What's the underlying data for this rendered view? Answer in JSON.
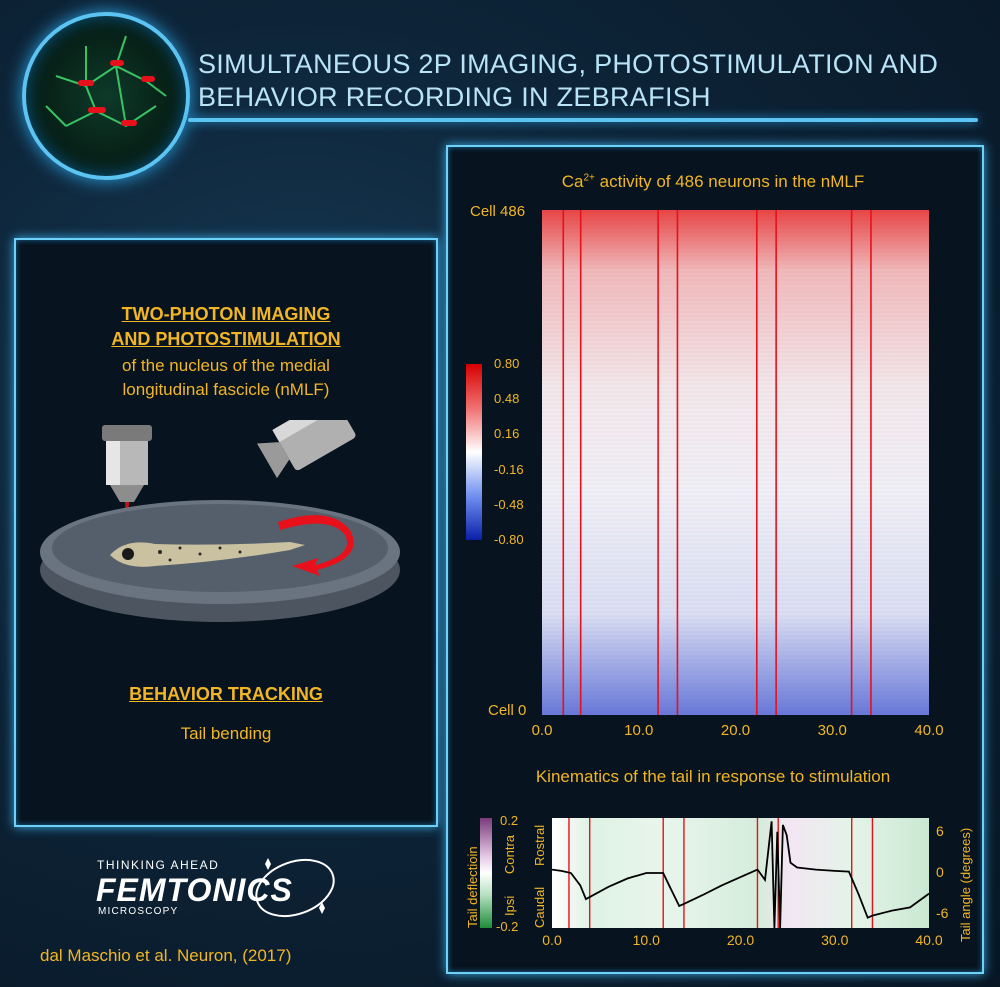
{
  "header": {
    "title": "SIMULTANEOUS 2P IMAGING, PHOTOSTIMULATION AND BEHAVIOR RECORDING IN ZEBRAFISH"
  },
  "left": {
    "tp_title_1": "TWO-PHOTON IMAGING",
    "tp_title_2": "AND PHOTOSTIMULATION",
    "tp_desc_1": "of the nucleus of the medial",
    "tp_desc_2": "longitudinal fascicle (nMLF)",
    "behavior_title": "BEHAVIOR TRACKING",
    "behavior_desc": "Tail bending"
  },
  "logo": {
    "tagline": "THINKING AHEAD",
    "name": "FEMTONICS",
    "sub": "MICROSCOPY"
  },
  "citation": "dal Maschio et al. Neuron, (2017)",
  "colors": {
    "accent": "#6fd0f8",
    "gold": "#f2b624",
    "stim_line": "#e8101a"
  },
  "chart_data": [
    {
      "type": "heatmap",
      "title": "activity of 486 neurons in the nMLF",
      "title_prefix": "Ca",
      "title_sup": "2+",
      "y_top_label": "Cell 486",
      "y_bottom_label": "Cell 0",
      "xlim": [
        0,
        40
      ],
      "x_ticks": [
        "0.0",
        "10.0",
        "20.0",
        "30.0",
        "40.0"
      ],
      "colorbar_ticks": [
        "0.80",
        "0.48",
        "0.16",
        "-0.16",
        "-0.48",
        "-0.80"
      ],
      "clim": [
        -0.8,
        0.8
      ],
      "stim_lines": [
        2.2,
        4.0,
        12.0,
        14.0,
        22.2,
        24.2,
        32.0,
        34.0
      ]
    },
    {
      "type": "line",
      "title": "Kinematics of the tail in response to stimulation",
      "xlim": [
        0,
        40
      ],
      "x_ticks": [
        "0.0",
        "10.0",
        "20.0",
        "30.0",
        "40.0"
      ],
      "ylim": [
        -8,
        8
      ],
      "y_right_ticks": [
        "6",
        "0",
        "-6"
      ],
      "y_right_label": "Tail angle (degrees)",
      "cbar_label": "Tail deflectioin",
      "cbar_ticks": [
        "0.2",
        "-0.2"
      ],
      "cbar_side_labels": [
        "Contra",
        "Ipsi"
      ],
      "side_labels": [
        "Rostral",
        "Caudal"
      ],
      "stim_lines": [
        1.8,
        4.0,
        11.8,
        14.0,
        21.8,
        24.0,
        31.8,
        34.0
      ],
      "x": [
        0,
        1,
        2,
        3,
        3.6,
        4,
        6,
        8,
        10,
        11.8,
        12.5,
        13.5,
        14,
        16,
        18,
        20,
        21.8,
        22.6,
        23.3,
        23.6,
        23.9,
        24.2,
        24.5,
        24.9,
        25.3,
        26,
        28,
        30,
        31.5,
        32.5,
        33.5,
        34,
        36,
        38,
        40
      ],
      "y": [
        0.5,
        0.3,
        0,
        -1.8,
        -3.8,
        -3.5,
        -2,
        -0.8,
        0,
        0,
        -2,
        -4.8,
        -4.5,
        -3.2,
        -1.8,
        -0.6,
        0.5,
        -1,
        7.5,
        -8,
        6,
        -8,
        7,
        5.5,
        1.5,
        0.8,
        0.5,
        0.3,
        0.2,
        -3,
        -6.5,
        -6.2,
        -5.5,
        -5,
        -3
      ]
    }
  ]
}
